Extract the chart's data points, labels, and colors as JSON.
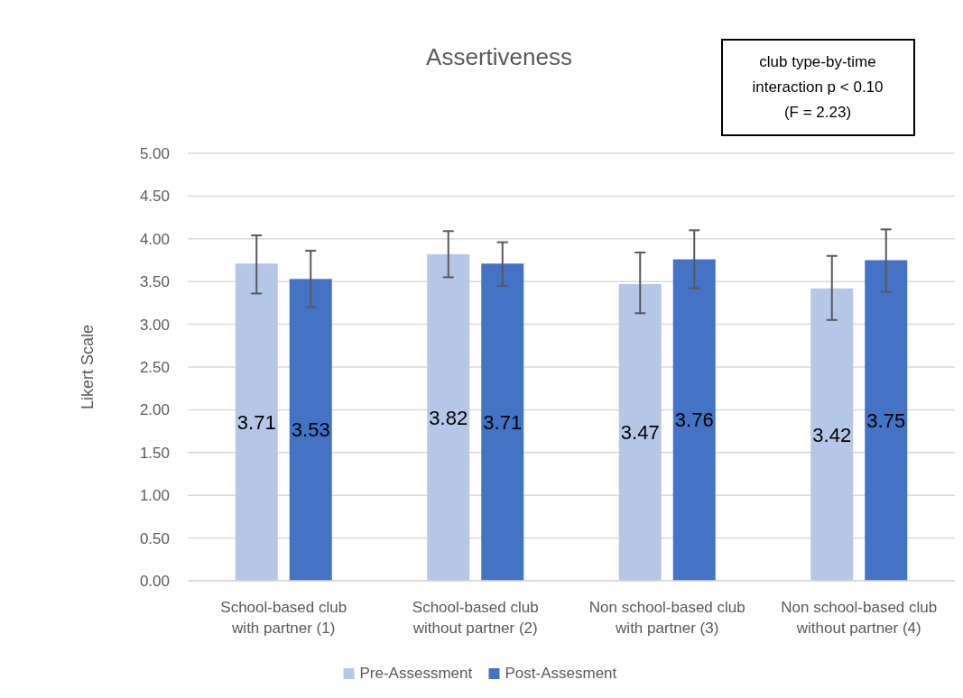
{
  "chart_data": {
    "type": "bar",
    "title": "Assertiveness",
    "ylabel": "Likert Scale",
    "categories": [
      "School-based club with partner (1)",
      "School-based club without partner (2)",
      "Non school-based club with partner (3)",
      "Non school-based club without partner (4)"
    ],
    "series": [
      {
        "name": "Pre-Assessment",
        "color": "#b4c7e7",
        "values": [
          3.71,
          3.82,
          3.47,
          3.42
        ],
        "errors": [
          [
            3.36,
            4.04
          ],
          [
            3.55,
            4.09
          ],
          [
            3.13,
            3.84
          ],
          [
            3.05,
            3.8
          ]
        ]
      },
      {
        "name": "Post-Assesment",
        "color": "#4472c4",
        "values": [
          3.53,
          3.71,
          3.76,
          3.75
        ],
        "errors": [
          [
            3.2,
            3.86
          ],
          [
            3.45,
            3.96
          ],
          [
            3.42,
            4.1
          ],
          [
            3.38,
            4.11
          ]
        ]
      }
    ],
    "ylim": [
      0,
      5
    ],
    "yticks": [
      {
        "value": 0,
        "label": "0.00"
      },
      {
        "value": 0.5,
        "label": "0.50"
      },
      {
        "value": 1,
        "label": "1.00"
      },
      {
        "value": 1.5,
        "label": "1.50"
      },
      {
        "value": 2,
        "label": "2.00"
      },
      {
        "value": 2.5,
        "label": "2.50"
      },
      {
        "value": 3,
        "label": "3.00"
      },
      {
        "value": 3.5,
        "label": "3.50"
      },
      {
        "value": 4,
        "label": "4.00"
      },
      {
        "value": 4.5,
        "label": "4.50"
      },
      {
        "value": 5,
        "label": "5.00"
      }
    ],
    "grid": "y",
    "legend": "bottom",
    "data_labels": true,
    "annotations": [
      "club type-by-time interaction p < 0.10 (F = 2.23)"
    ]
  }
}
